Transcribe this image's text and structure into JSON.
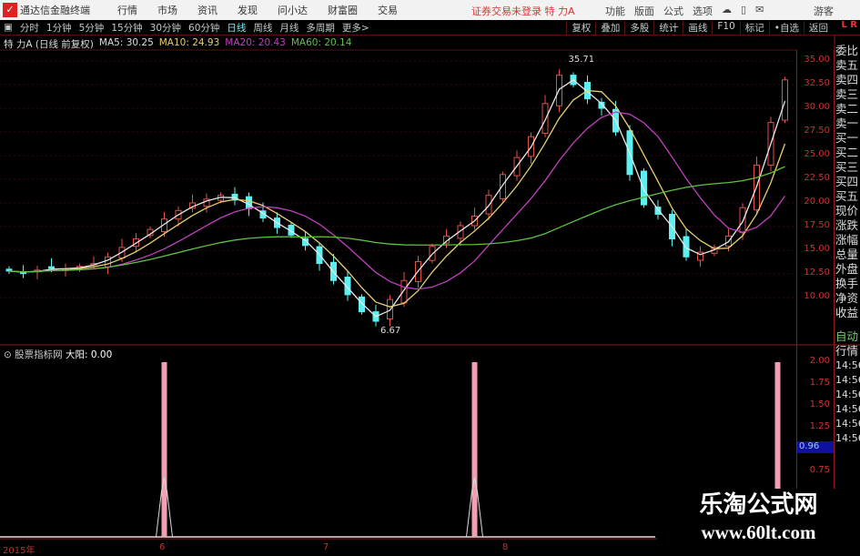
{
  "menubar": {
    "app": "通达信金融终端",
    "items": [
      "行情",
      "市场",
      "资讯",
      "发现",
      "问小达",
      "财富圈",
      "交易"
    ],
    "login_status": "证券交易未登录",
    "stock": "特 力A",
    "right": [
      "功能",
      "版面",
      "公式",
      "选项"
    ],
    "guest": "游客"
  },
  "toolbar": {
    "periods": [
      "分时",
      "1分钟",
      "5分钟",
      "15分钟",
      "30分钟",
      "60分钟",
      "日线",
      "周线",
      "月线",
      "多周期",
      "更多>"
    ],
    "active": "日线",
    "buttons": [
      "复权",
      "叠加",
      "多股",
      "统计",
      "画线",
      "F10",
      "标记",
      "•自选",
      "返回"
    ],
    "lr": "L R"
  },
  "ma_line": {
    "title": "特 力A (日线 前复权)",
    "ma5": "MA5: 30.25",
    "ma10": "MA10: 24.93",
    "ma20": "MA20: 20.43",
    "ma60": "MA60: 20.14"
  },
  "colors": {
    "up": "#e0524a",
    "down": "#5ef0f0",
    "ma5": "#e8e8e8",
    "ma10": "#e8d070",
    "ma20": "#c040c0",
    "ma60": "#60c040",
    "signal": "#f0a0b0"
  },
  "price_axis": [
    "35.00",
    "32.50",
    "30.00",
    "27.50",
    "25.00",
    "22.50",
    "20.00",
    "17.50",
    "15.00",
    "12.50",
    "10.00"
  ],
  "kline": {
    "closes": [
      12.8,
      12.6,
      12.9,
      13.1,
      13.0,
      13.3,
      13.6,
      14.3,
      15.3,
      16.2,
      17.2,
      18.3,
      19.2,
      20.0,
      20.4,
      20.8,
      20.3,
      19.4,
      18.4,
      17.4,
      16.6,
      15.5,
      13.6,
      11.8,
      10.3,
      8.5,
      7.5,
      9.8,
      11.8,
      13.8,
      15.4,
      16.5,
      17.6,
      18.6,
      20.8,
      23.0,
      24.8,
      27.0,
      30.5,
      33.5,
      32.5,
      31.0,
      30.0,
      27.5,
      23.0,
      19.8,
      18.8,
      16.2,
      14.3,
      14.8,
      15.3,
      16.5,
      19.5,
      24.0,
      28.5,
      33.0
    ],
    "high_label": "35.71",
    "low_label": "6.67"
  },
  "indicator": {
    "title": "股票指标网",
    "name": "大阳: 0.00",
    "axis": [
      "2.00",
      "1.75",
      "1.50",
      "1.25",
      "0.75"
    ],
    "current": "0.96",
    "signals": [
      11,
      33,
      55
    ]
  },
  "dates": [
    "2015年",
    "6",
    "7",
    "8"
  ],
  "right_panel": [
    "委比",
    "卖五",
    "卖四",
    "卖三",
    "卖二",
    "卖一",
    "买一",
    "买二",
    "买三",
    "买四",
    "买五",
    "现价",
    "涨跌",
    "涨幅",
    "总量",
    "外盘",
    "换手",
    "净资",
    "收益"
  ],
  "right_panel2": [
    "自动",
    "行情",
    "14:56",
    "14:56",
    "14:56",
    "14:56",
    "14:56",
    "14:56"
  ],
  "watermark": {
    "name": "乐淘公式网",
    "url": "www.60lt.com"
  }
}
